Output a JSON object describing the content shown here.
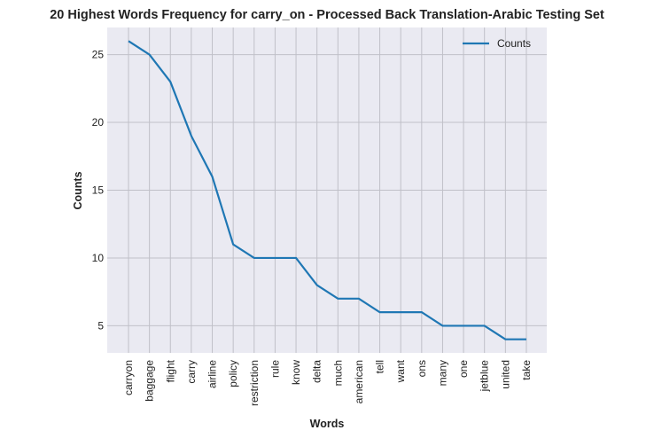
{
  "chart_data": {
    "type": "line",
    "title": "20 Highest Words Frequency for carry_on - Processed Back Translation-Arabic Testing Set",
    "xlabel": "Words",
    "ylabel": "Counts",
    "categories": [
      "carryon",
      "baggage",
      "flight",
      "carry",
      "airline",
      "policy",
      "restriction",
      "rule",
      "know",
      "delta",
      "much",
      "american",
      "tell",
      "want",
      "ons",
      "many",
      "one",
      "jetblue",
      "united",
      "take"
    ],
    "series": [
      {
        "name": "Counts",
        "values": [
          26,
          25,
          23,
          19,
          16,
          11,
          10,
          10,
          10,
          8,
          7,
          7,
          6,
          6,
          6,
          5,
          5,
          5,
          4,
          4
        ]
      }
    ],
    "ylim": [
      3,
      27
    ],
    "yticks": [
      5,
      10,
      15,
      20,
      25
    ],
    "grid": true,
    "legend_position": "top-right",
    "colors": {
      "line": "#1f77b4",
      "plot_bg": "#eaeaf2",
      "grid": "#c0c0c8"
    }
  }
}
